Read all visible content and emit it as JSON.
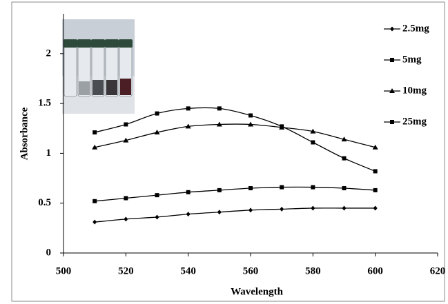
{
  "chart_data": {
    "type": "line",
    "x_label": "Wavelength",
    "y_label": "Absorbance",
    "x": [
      510,
      520,
      530,
      540,
      550,
      560,
      570,
      580,
      590,
      600
    ],
    "series": [
      {
        "name": "2.5mg",
        "color": "#000000",
        "marker": "diamond",
        "values": [
          0.31,
          0.34,
          0.36,
          0.39,
          0.41,
          0.43,
          0.44,
          0.45,
          0.45,
          0.45
        ]
      },
      {
        "name": "5mg",
        "color": "#000000",
        "marker": "square",
        "values": [
          0.52,
          0.55,
          0.58,
          0.61,
          0.63,
          0.65,
          0.66,
          0.66,
          0.65,
          0.63
        ]
      },
      {
        "name": "10mg",
        "color": "#000000",
        "marker": "triangle",
        "values": [
          1.06,
          1.13,
          1.21,
          1.27,
          1.29,
          1.29,
          1.26,
          1.22,
          1.14,
          1.06
        ]
      },
      {
        "name": "25mg",
        "color": "#000000",
        "marker": "square",
        "values": [
          1.21,
          1.29,
          1.4,
          1.45,
          1.45,
          1.38,
          1.27,
          1.11,
          0.95,
          0.82
        ]
      }
    ],
    "xlim": [
      500,
      620
    ],
    "xticks": [
      500,
      520,
      540,
      560,
      580,
      600,
      620
    ],
    "ylim": [
      0,
      2.4
    ],
    "yticks": [
      0,
      0.5,
      1,
      1.5,
      2
    ],
    "grid": false,
    "legend": "right"
  }
}
